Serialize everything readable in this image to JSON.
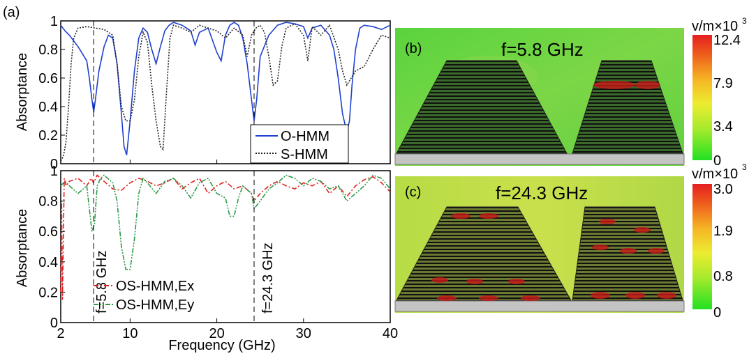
{
  "panel_labels": {
    "a": "(a)",
    "b": "(b)",
    "c": "(c)"
  },
  "colors": {
    "o_hmm": "#1f3fd0",
    "s_hmm": "#222222",
    "os_ex": "#e02020",
    "os_ey": "#2e9a48",
    "field_background": "#6fd04a",
    "substrate": "#c4c4c4"
  },
  "chart_data": [
    {
      "type": "line",
      "panel": "(a) top",
      "xlabel": "",
      "ylabel": "Absorptance",
      "xlim": [
        2,
        40
      ],
      "ylim": [
        0,
        1
      ],
      "x_ticks": [
        "2",
        "10",
        "20",
        "30",
        "40"
      ],
      "y_ticks": [
        "0",
        "0.2",
        "0.4",
        "0.6",
        "0.8",
        "1"
      ],
      "grid": false,
      "legend_position": "bottom-right",
      "markers": [
        5.8,
        24.3
      ],
      "series": [
        {
          "name": "O-HMM",
          "style": "solid",
          "x": [
            2,
            2.5,
            3,
            3.5,
            4,
            4.5,
            5,
            5.3,
            5.6,
            5.8,
            6,
            6.4,
            7,
            7.5,
            8,
            8.5,
            9,
            9.3,
            9.6,
            10,
            10.5,
            11,
            11.5,
            12,
            12.5,
            13,
            13.5,
            14,
            14.5,
            15,
            16,
            17,
            17.5,
            18,
            19,
            20,
            20.5,
            21,
            21.5,
            22,
            22.5,
            23,
            23.5,
            24,
            24.3,
            24.6,
            25,
            26,
            27,
            28,
            29,
            30,
            30.5,
            31,
            32,
            33,
            33.5,
            34,
            34.5,
            35,
            35.3,
            35.6,
            36,
            36.5,
            37,
            38,
            39,
            40
          ],
          "y": [
            0.97,
            0.93,
            0.9,
            0.86,
            0.82,
            0.77,
            0.72,
            0.6,
            0.45,
            0.36,
            0.45,
            0.65,
            0.82,
            0.9,
            0.88,
            0.7,
            0.35,
            0.12,
            0.06,
            0.3,
            0.65,
            0.88,
            0.95,
            0.92,
            0.8,
            0.7,
            0.82,
            0.93,
            0.97,
            0.99,
            0.97,
            0.93,
            0.83,
            0.92,
            0.95,
            0.78,
            0.72,
            0.9,
            0.97,
            0.99,
            0.97,
            0.88,
            0.7,
            0.45,
            0.3,
            0.45,
            0.75,
            0.9,
            0.97,
            0.99,
            0.98,
            0.96,
            0.88,
            0.95,
            0.97,
            0.9,
            0.8,
            0.6,
            0.35,
            0.22,
            0.3,
            0.55,
            0.8,
            0.95,
            0.97,
            0.96,
            0.94,
            0.97
          ]
        },
        {
          "name": "S-HMM",
          "style": "dotted",
          "x": [
            2,
            2.3,
            2.6,
            2.9,
            3.2,
            3.5,
            4,
            5,
            6,
            7,
            8,
            8.5,
            9,
            9.5,
            10,
            10.5,
            11,
            11.5,
            12,
            12.5,
            13,
            13.5,
            13.8,
            14.2,
            14.6,
            15,
            16,
            17,
            18,
            19,
            20,
            21,
            22,
            23,
            23.5,
            24,
            24.5,
            25,
            25.5,
            26,
            26.5,
            27,
            27.5,
            28,
            29,
            30,
            30.5,
            31,
            32,
            33,
            34,
            34.5,
            35,
            36,
            37,
            38,
            39,
            40
          ],
          "y": [
            0.02,
            0.05,
            0.15,
            0.4,
            0.7,
            0.88,
            0.95,
            0.96,
            0.95,
            0.94,
            0.9,
            0.7,
            0.4,
            0.3,
            0.3,
            0.45,
            0.75,
            0.92,
            0.85,
            0.55,
            0.3,
            0.12,
            0.1,
            0.5,
            0.88,
            0.97,
            0.95,
            0.92,
            0.97,
            0.95,
            0.93,
            0.88,
            0.95,
            0.9,
            0.75,
            0.9,
            0.95,
            0.97,
            0.92,
            0.75,
            0.55,
            0.58,
            0.82,
            0.95,
            0.98,
            0.9,
            0.72,
            0.96,
            0.9,
            0.97,
            0.8,
            0.65,
            0.55,
            0.65,
            0.68,
            0.8,
            0.9,
            0.88
          ]
        }
      ]
    },
    {
      "type": "line",
      "panel": "(a) bottom",
      "xlabel": "Frequency (GHz)",
      "ylabel": "Absorptance",
      "xlim": [
        2,
        40
      ],
      "ylim": [
        0,
        1
      ],
      "x_ticks": [
        "2",
        "10",
        "20",
        "30",
        "40"
      ],
      "y_ticks": [
        "0",
        "0.2",
        "0.4",
        "0.6",
        "0.8",
        "1"
      ],
      "grid": false,
      "legend_position": "bottom-left",
      "markers": [
        5.8,
        24.3
      ],
      "annotations": [
        "f=5.8 GHz",
        "f=24.3 GHz"
      ],
      "series": [
        {
          "name": "OS-HMM,Ex",
          "style": "dash-dot",
          "x": [
            2,
            2.1,
            2.2,
            2.4,
            2.6,
            3,
            4,
            5,
            5.5,
            5.8,
            6.2,
            7,
            8,
            9,
            10,
            11,
            12,
            13,
            14,
            15,
            16,
            17,
            18,
            19,
            20,
            21,
            22,
            23,
            24,
            24.3,
            25,
            26,
            27,
            28,
            29,
            30,
            31,
            32,
            33,
            34,
            35,
            36,
            37,
            38,
            39,
            40
          ],
          "y": [
            0.2,
            0.8,
            0.15,
            0.95,
            0.9,
            0.93,
            0.95,
            0.9,
            0.95,
            0.92,
            0.97,
            0.93,
            0.88,
            0.87,
            0.92,
            0.95,
            0.93,
            0.9,
            0.92,
            0.95,
            0.88,
            0.92,
            0.95,
            0.85,
            0.9,
            0.93,
            0.88,
            0.9,
            0.85,
            0.8,
            0.85,
            0.9,
            0.93,
            0.9,
            0.88,
            0.92,
            0.9,
            0.93,
            0.85,
            0.9,
            0.83,
            0.9,
            0.94,
            0.96,
            0.92,
            0.86
          ]
        },
        {
          "name": "OS-HMM,Ey",
          "style": "dash-dot-dot",
          "x": [
            2,
            2.5,
            3,
            4,
            5,
            5.3,
            5.6,
            5.9,
            6.2,
            6.6,
            7,
            8,
            8.5,
            9,
            9.5,
            10,
            10.5,
            11,
            11.5,
            12,
            13,
            14,
            15,
            16,
            17,
            18,
            19,
            20,
            21,
            21.5,
            22,
            22.5,
            23,
            24,
            24.3,
            25,
            26,
            27,
            28,
            29,
            30,
            31,
            32,
            33,
            34,
            35,
            36,
            37,
            38,
            39,
            40
          ],
          "y": [
            0.9,
            0.93,
            0.9,
            0.85,
            0.9,
            0.75,
            0.6,
            0.65,
            0.9,
            0.95,
            0.97,
            0.92,
            0.8,
            0.5,
            0.35,
            0.35,
            0.55,
            0.85,
            0.95,
            0.92,
            0.85,
            0.93,
            0.95,
            0.9,
            0.82,
            0.92,
            0.95,
            0.85,
            0.82,
            0.7,
            0.7,
            0.82,
            0.9,
            0.85,
            0.75,
            0.8,
            0.88,
            0.92,
            0.97,
            0.95,
            0.9,
            0.95,
            0.93,
            0.88,
            0.9,
            0.8,
            0.85,
            0.9,
            0.97,
            0.95,
            0.88
          ]
        }
      ]
    },
    {
      "type": "heatmap",
      "panel": "(b)",
      "title": "f=5.8 GHz",
      "colorbar_unit": "v/m×10",
      "colorbar_exponent": "3",
      "colorbar_ticks": [
        "12.4",
        "7.9",
        "3.4",
        "0"
      ],
      "colorbar_range": [
        0,
        12.4
      ]
    },
    {
      "type": "heatmap",
      "panel": "(c)",
      "title": "f=24.3 GHz",
      "colorbar_unit": "v/m×10",
      "colorbar_exponent": "3",
      "colorbar_ticks": [
        "3.0",
        "1.9",
        "0.8",
        "0"
      ],
      "colorbar_range": [
        0,
        3.0
      ]
    }
  ]
}
